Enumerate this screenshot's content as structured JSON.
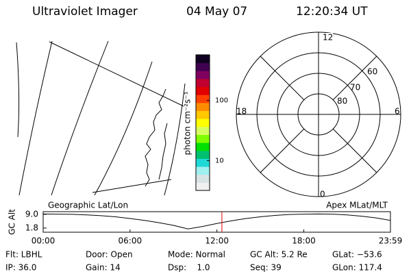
{
  "header": {
    "title": "Ultraviolet Imager",
    "date": "04 May 07",
    "time": "12:20:34 UT"
  },
  "chart_data": [
    {
      "type": "line",
      "ylabel": "GC Alt",
      "left_label": "Geographic Lat/Lon",
      "right_label": "Apex MLat/MLT",
      "x": [
        0,
        1,
        2,
        3,
        4,
        5,
        6,
        7,
        8,
        9,
        10,
        11,
        12,
        13,
        14,
        15,
        16,
        17,
        18,
        19,
        20,
        21,
        22,
        23,
        23.983
      ],
      "values": [
        9.2,
        9.1,
        9.0,
        8.7,
        8.3,
        7.7,
        6.8,
        5.8,
        4.6,
        3.2,
        1.3,
        2.6,
        4.2,
        5.6,
        6.8,
        7.7,
        8.4,
        8.9,
        9.1,
        9.2,
        9.1,
        8.7,
        8.0,
        7.1,
        5.8
      ],
      "color": "#000000",
      "marker_x": 12.343,
      "marker_color": "#e00000",
      "xlim": [
        0,
        23.983
      ],
      "ylim": [
        -0.4,
        10.4
      ],
      "xticks": [
        {
          "value": 0,
          "label": "00:00"
        },
        {
          "value": 6,
          "label": "06:00"
        },
        {
          "value": 12,
          "label": "12:00"
        },
        {
          "value": 18,
          "label": "18:00"
        },
        {
          "value": 23.983,
          "label": "23:59"
        }
      ],
      "yticks": [
        {
          "value": 9,
          "label": "9.0"
        },
        1.8
      ]
    },
    {
      "type": "colorbar",
      "ylabel": "photon cm⁻²s⁻¹",
      "log": true,
      "ylim": [
        3.2,
        570
      ],
      "yticks": [
        10,
        100
      ],
      "colors": [
        "#f0f0f0",
        "#d8e4e4",
        "#a0f0f0",
        "#20d8d8",
        "#00c070",
        "#00e000",
        "#80ff00",
        "#d8ff60",
        "#ffff00",
        "#ffc800",
        "#ff8c00",
        "#ff4000",
        "#e00000",
        "#c00030",
        "#800060",
        "#400050",
        "#100020"
      ]
    }
  ],
  "polar": {
    "mlt_labels": [
      "12",
      "6",
      "0",
      "18"
    ],
    "lat_labels": [
      "60",
      "70",
      "80"
    ]
  },
  "info": [
    [
      "Flt: LBHL",
      "Door: Open",
      "Mode: Normal",
      "GC Alt: 5.2 Re",
      "GLat: −53.6"
    ],
    [
      "IP: 36.0",
      "Gain: 14",
      "Dsp:    1.0",
      "Seq: 39",
      "GLon: 117.4"
    ]
  ]
}
